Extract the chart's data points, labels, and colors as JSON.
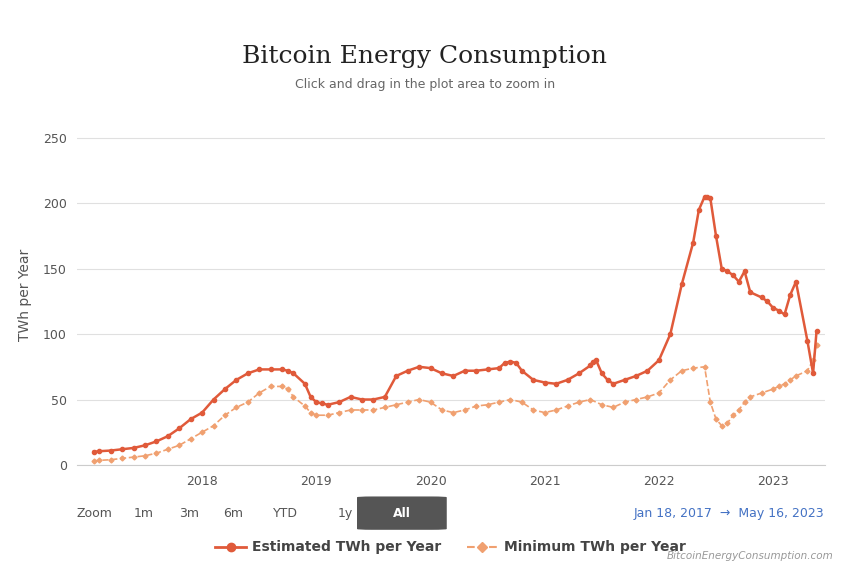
{
  "title": "Bitcoin Energy Consumption",
  "subtitle": "Click and drag in the plot area to zoom in",
  "ylabel": "TWh per Year",
  "ylim": [
    0,
    260
  ],
  "yticks": [
    0,
    50,
    100,
    150,
    200,
    250
  ],
  "bg_color": "#ffffff",
  "plot_bg_color": "#ffffff",
  "grid_color": "#e0e0e0",
  "line1_color": "#e05a3a",
  "line2_color": "#f0a070",
  "watermark": "BitcoinEnergyConsumption.com",
  "zoom_label": "Zoom",
  "zoom_buttons": [
    "1m",
    "3m",
    "6m",
    "YTD",
    "1y",
    "All"
  ],
  "date_range": "Jan 18, 2017  →  May 16, 2023",
  "legend1": "Estimated TWh per Year",
  "legend2": "Minimum TWh per Year",
  "estimated_x": [
    2017.05,
    2017.1,
    2017.2,
    2017.3,
    2017.4,
    2017.5,
    2017.6,
    2017.7,
    2017.8,
    2017.9,
    2018.0,
    2018.1,
    2018.2,
    2018.3,
    2018.4,
    2018.5,
    2018.6,
    2018.7,
    2018.75,
    2018.8,
    2018.9,
    2018.95,
    2019.0,
    2019.05,
    2019.1,
    2019.2,
    2019.3,
    2019.4,
    2019.5,
    2019.6,
    2019.7,
    2019.8,
    2019.9,
    2020.0,
    2020.1,
    2020.2,
    2020.3,
    2020.4,
    2020.5,
    2020.6,
    2020.65,
    2020.7,
    2020.75,
    2020.8,
    2020.9,
    2021.0,
    2021.1,
    2021.2,
    2021.3,
    2021.4,
    2021.42,
    2021.45,
    2021.5,
    2021.55,
    2021.6,
    2021.7,
    2021.8,
    2021.9,
    2022.0,
    2022.1,
    2022.2,
    2022.3,
    2022.35,
    2022.4,
    2022.42,
    2022.45,
    2022.5,
    2022.55,
    2022.6,
    2022.65,
    2022.7,
    2022.75,
    2022.8,
    2022.9,
    2022.95,
    2023.0,
    2023.05,
    2023.1,
    2023.15,
    2023.2,
    2023.3,
    2023.35,
    2023.38
  ],
  "estimated_y": [
    10,
    10.5,
    11,
    12,
    13,
    15,
    18,
    22,
    28,
    35,
    40,
    50,
    58,
    65,
    70,
    73,
    73,
    73,
    72,
    70,
    62,
    52,
    48,
    47,
    46,
    48,
    52,
    50,
    50,
    52,
    68,
    72,
    75,
    74,
    70,
    68,
    72,
    72,
    73,
    74,
    78,
    79,
    78,
    72,
    65,
    63,
    62,
    65,
    70,
    76,
    79,
    80,
    70,
    65,
    62,
    65,
    68,
    72,
    80,
    100,
    138,
    170,
    195,
    205,
    205,
    204,
    175,
    150,
    148,
    145,
    140,
    148,
    132,
    128,
    125,
    120,
    118,
    115,
    130,
    140,
    95,
    70,
    102
  ],
  "minimum_x": [
    2017.05,
    2017.1,
    2017.2,
    2017.3,
    2017.4,
    2017.5,
    2017.6,
    2017.7,
    2017.8,
    2017.9,
    2018.0,
    2018.1,
    2018.2,
    2018.3,
    2018.4,
    2018.5,
    2018.6,
    2018.7,
    2018.75,
    2018.8,
    2018.9,
    2018.95,
    2019.0,
    2019.1,
    2019.2,
    2019.3,
    2019.4,
    2019.5,
    2019.6,
    2019.7,
    2019.8,
    2019.9,
    2020.0,
    2020.1,
    2020.2,
    2020.3,
    2020.4,
    2020.5,
    2020.6,
    2020.7,
    2020.8,
    2020.9,
    2021.0,
    2021.1,
    2021.2,
    2021.3,
    2021.4,
    2021.5,
    2021.6,
    2021.7,
    2021.8,
    2021.9,
    2022.0,
    2022.1,
    2022.2,
    2022.3,
    2022.4,
    2022.45,
    2022.5,
    2022.55,
    2022.6,
    2022.65,
    2022.7,
    2022.75,
    2022.8,
    2022.9,
    2023.0,
    2023.05,
    2023.1,
    2023.15,
    2023.2,
    2023.3,
    2023.35,
    2023.38
  ],
  "minimum_y": [
    3,
    3.5,
    4,
    5,
    6,
    7,
    9,
    12,
    15,
    20,
    25,
    30,
    38,
    44,
    48,
    55,
    60,
    60,
    58,
    52,
    45,
    40,
    38,
    38,
    40,
    42,
    42,
    42,
    44,
    46,
    48,
    50,
    48,
    42,
    40,
    42,
    45,
    46,
    48,
    50,
    48,
    42,
    40,
    42,
    45,
    48,
    50,
    46,
    44,
    48,
    50,
    52,
    55,
    65,
    72,
    74,
    75,
    48,
    35,
    30,
    32,
    38,
    42,
    48,
    52,
    55,
    58,
    60,
    62,
    65,
    68,
    72,
    80,
    92
  ]
}
